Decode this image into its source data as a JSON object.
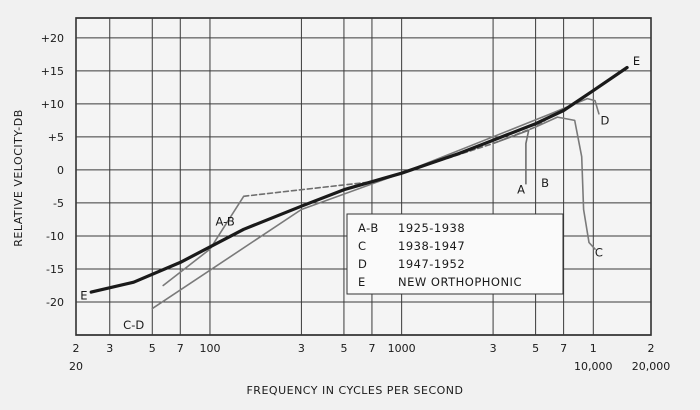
{
  "chart_data": {
    "type": "line",
    "xlabel": "FREQUENCY IN CYCLES PER SECOND",
    "ylabel": "RELATIVE VELOCITY-DB",
    "xscale": "log",
    "xlim": [
      20,
      20000
    ],
    "ylim": [
      -25,
      23
    ],
    "grid": true,
    "y_ticks": [
      {
        "value": 20,
        "label": "+20"
      },
      {
        "value": 15,
        "label": "+15"
      },
      {
        "value": 10,
        "label": "+10"
      },
      {
        "value": 5,
        "label": "+5"
      },
      {
        "value": 0,
        "label": "0"
      },
      {
        "value": -5,
        "label": "-5"
      },
      {
        "value": -10,
        "label": "-10"
      },
      {
        "value": -15,
        "label": "-15"
      },
      {
        "value": -20,
        "label": "-20"
      }
    ],
    "x_ticks": [
      {
        "value": 20,
        "label": "2",
        "sub": "20"
      },
      {
        "value": 30,
        "label": "3"
      },
      {
        "value": 50,
        "label": "5"
      },
      {
        "value": 70,
        "label": "7"
      },
      {
        "value": 100,
        "label": "100"
      },
      {
        "value": 300,
        "label": "3"
      },
      {
        "value": 500,
        "label": "5"
      },
      {
        "value": 700,
        "label": "7"
      },
      {
        "value": 1000,
        "label": "1000"
      },
      {
        "value": 3000,
        "label": "3"
      },
      {
        "value": 5000,
        "label": "5"
      },
      {
        "value": 7000,
        "label": "7"
      },
      {
        "value": 10000,
        "label": "1",
        "sub": "10,000"
      },
      {
        "value": 20000,
        "label": "2",
        "sub": "20,000"
      }
    ],
    "series": [
      {
        "key": "A-B",
        "style": "dashed",
        "color": "#6e6e6e",
        "points": [
          [
            150,
            -4
          ],
          [
            300,
            -3
          ],
          [
            700,
            -1.8
          ],
          [
            1000,
            -0.5
          ],
          [
            3000,
            4
          ],
          [
            5000,
            6.5
          ],
          [
            5600,
            7.5
          ]
        ],
        "branch": [
          [
            4600,
            6
          ],
          [
            4450,
            4
          ],
          [
            4450,
            -2.2
          ]
        ]
      },
      {
        "key": "A-B-low",
        "style": "thin",
        "color": "#7a7a7a",
        "points": [
          [
            57,
            -17.5
          ],
          [
            100,
            -12
          ],
          [
            150,
            -4
          ]
        ]
      },
      {
        "key": "C",
        "style": "thin",
        "color": "#7a7a7a",
        "points": [
          [
            5000,
            6.5
          ],
          [
            6500,
            8
          ],
          [
            8000,
            7.5
          ],
          [
            8700,
            2
          ],
          [
            8900,
            -6
          ],
          [
            9500,
            -11
          ],
          [
            10200,
            -12
          ]
        ]
      },
      {
        "key": "D",
        "style": "thin",
        "color": "#7a7a7a",
        "points": [
          [
            6000,
            8.5
          ],
          [
            8000,
            10
          ],
          [
            9300,
            10.8
          ],
          [
            10200,
            10.5
          ],
          [
            10700,
            8.5
          ]
        ]
      },
      {
        "key": "C-D",
        "style": "thin",
        "color": "#7a7a7a",
        "points": [
          [
            50,
            -21
          ],
          [
            300,
            -6
          ],
          [
            1000,
            -0.5
          ],
          [
            6000,
            8.5
          ]
        ]
      },
      {
        "key": "E",
        "style": "bold",
        "color": "#1a1a1a",
        "points": [
          [
            24,
            -18.5
          ],
          [
            40,
            -17
          ],
          [
            70,
            -14
          ],
          [
            150,
            -9
          ],
          [
            300,
            -5.5
          ],
          [
            500,
            -3
          ],
          [
            1000,
            -0.5
          ],
          [
            2000,
            2.5
          ],
          [
            3000,
            4.5
          ],
          [
            5000,
            7
          ],
          [
            7000,
            9
          ],
          [
            10000,
            12
          ],
          [
            15000,
            15.5
          ]
        ]
      }
    ],
    "curve_labels": [
      {
        "text": "A-B",
        "x": 120,
        "y": -7.8
      },
      {
        "text": "C-D",
        "x": 40,
        "y": -23.5
      },
      {
        "text": "E",
        "x": 22,
        "y": -19
      },
      {
        "text": "A",
        "x": 4200,
        "y": -3
      },
      {
        "text": "B",
        "x": 5600,
        "y": -2
      },
      {
        "text": "C",
        "x": 10700,
        "y": -12.5
      },
      {
        "text": "D",
        "x": 11500,
        "y": 7.5
      },
      {
        "text": "E",
        "x": 16800,
        "y": 16.5
      }
    ],
    "legend": {
      "position": "center-right",
      "entries": [
        {
          "key": "A-B",
          "text": "1925-1938"
        },
        {
          "key": "C",
          "text": "1938-1947"
        },
        {
          "key": "D",
          "text": "1947-1952"
        },
        {
          "key": "E",
          "text": "NEW ORTHOPHONIC"
        }
      ]
    }
  }
}
